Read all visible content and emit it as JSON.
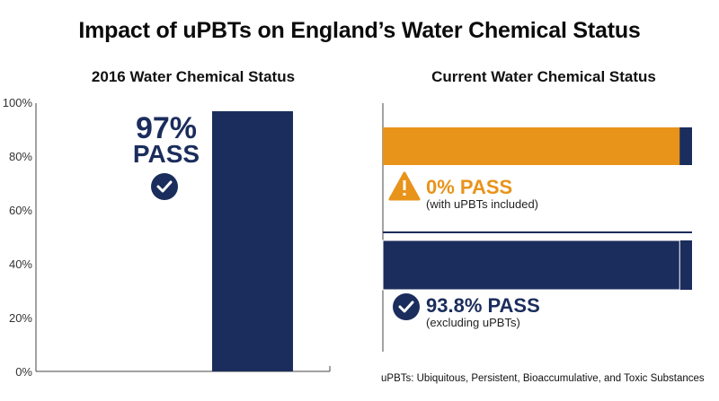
{
  "title": "Impact of uPBTs on England’s Water Chemical Status",
  "colors": {
    "navy": "#1b2d5c",
    "orange": "#e8931a"
  },
  "chart_data": [
    {
      "type": "bar",
      "title": "2016 Water Chemical Status",
      "categories": [
        ""
      ],
      "values": [
        97
      ],
      "ylim": [
        0,
        100
      ],
      "yticks": [
        "0%",
        "20%",
        "40%",
        "60%",
        "80%",
        "100%"
      ],
      "annotation": {
        "value_text": "97%",
        "status_text": "PASS",
        "icon": "check-circle-icon"
      }
    },
    {
      "type": "bar",
      "orientation": "horizontal",
      "title": "Current Water Chemical Status",
      "xlim": [
        0,
        100
      ],
      "bars": [
        {
          "value": 0,
          "fill_fraction": 0.96,
          "color": "#e8931a",
          "label": "0% PASS",
          "note": "(with uPBTs included)",
          "icon": "warning-triangle-icon"
        },
        {
          "value": 93.8,
          "fill_fraction": 0.96,
          "color": "#1b2d5c",
          "label": "93.8% PASS",
          "note": "(excluding uPBTs)",
          "icon": "check-circle-icon"
        }
      ]
    }
  ],
  "footnote": "uPBTs: Ubiquitous, Persistent, Bioaccumulative, and Toxic Substances"
}
